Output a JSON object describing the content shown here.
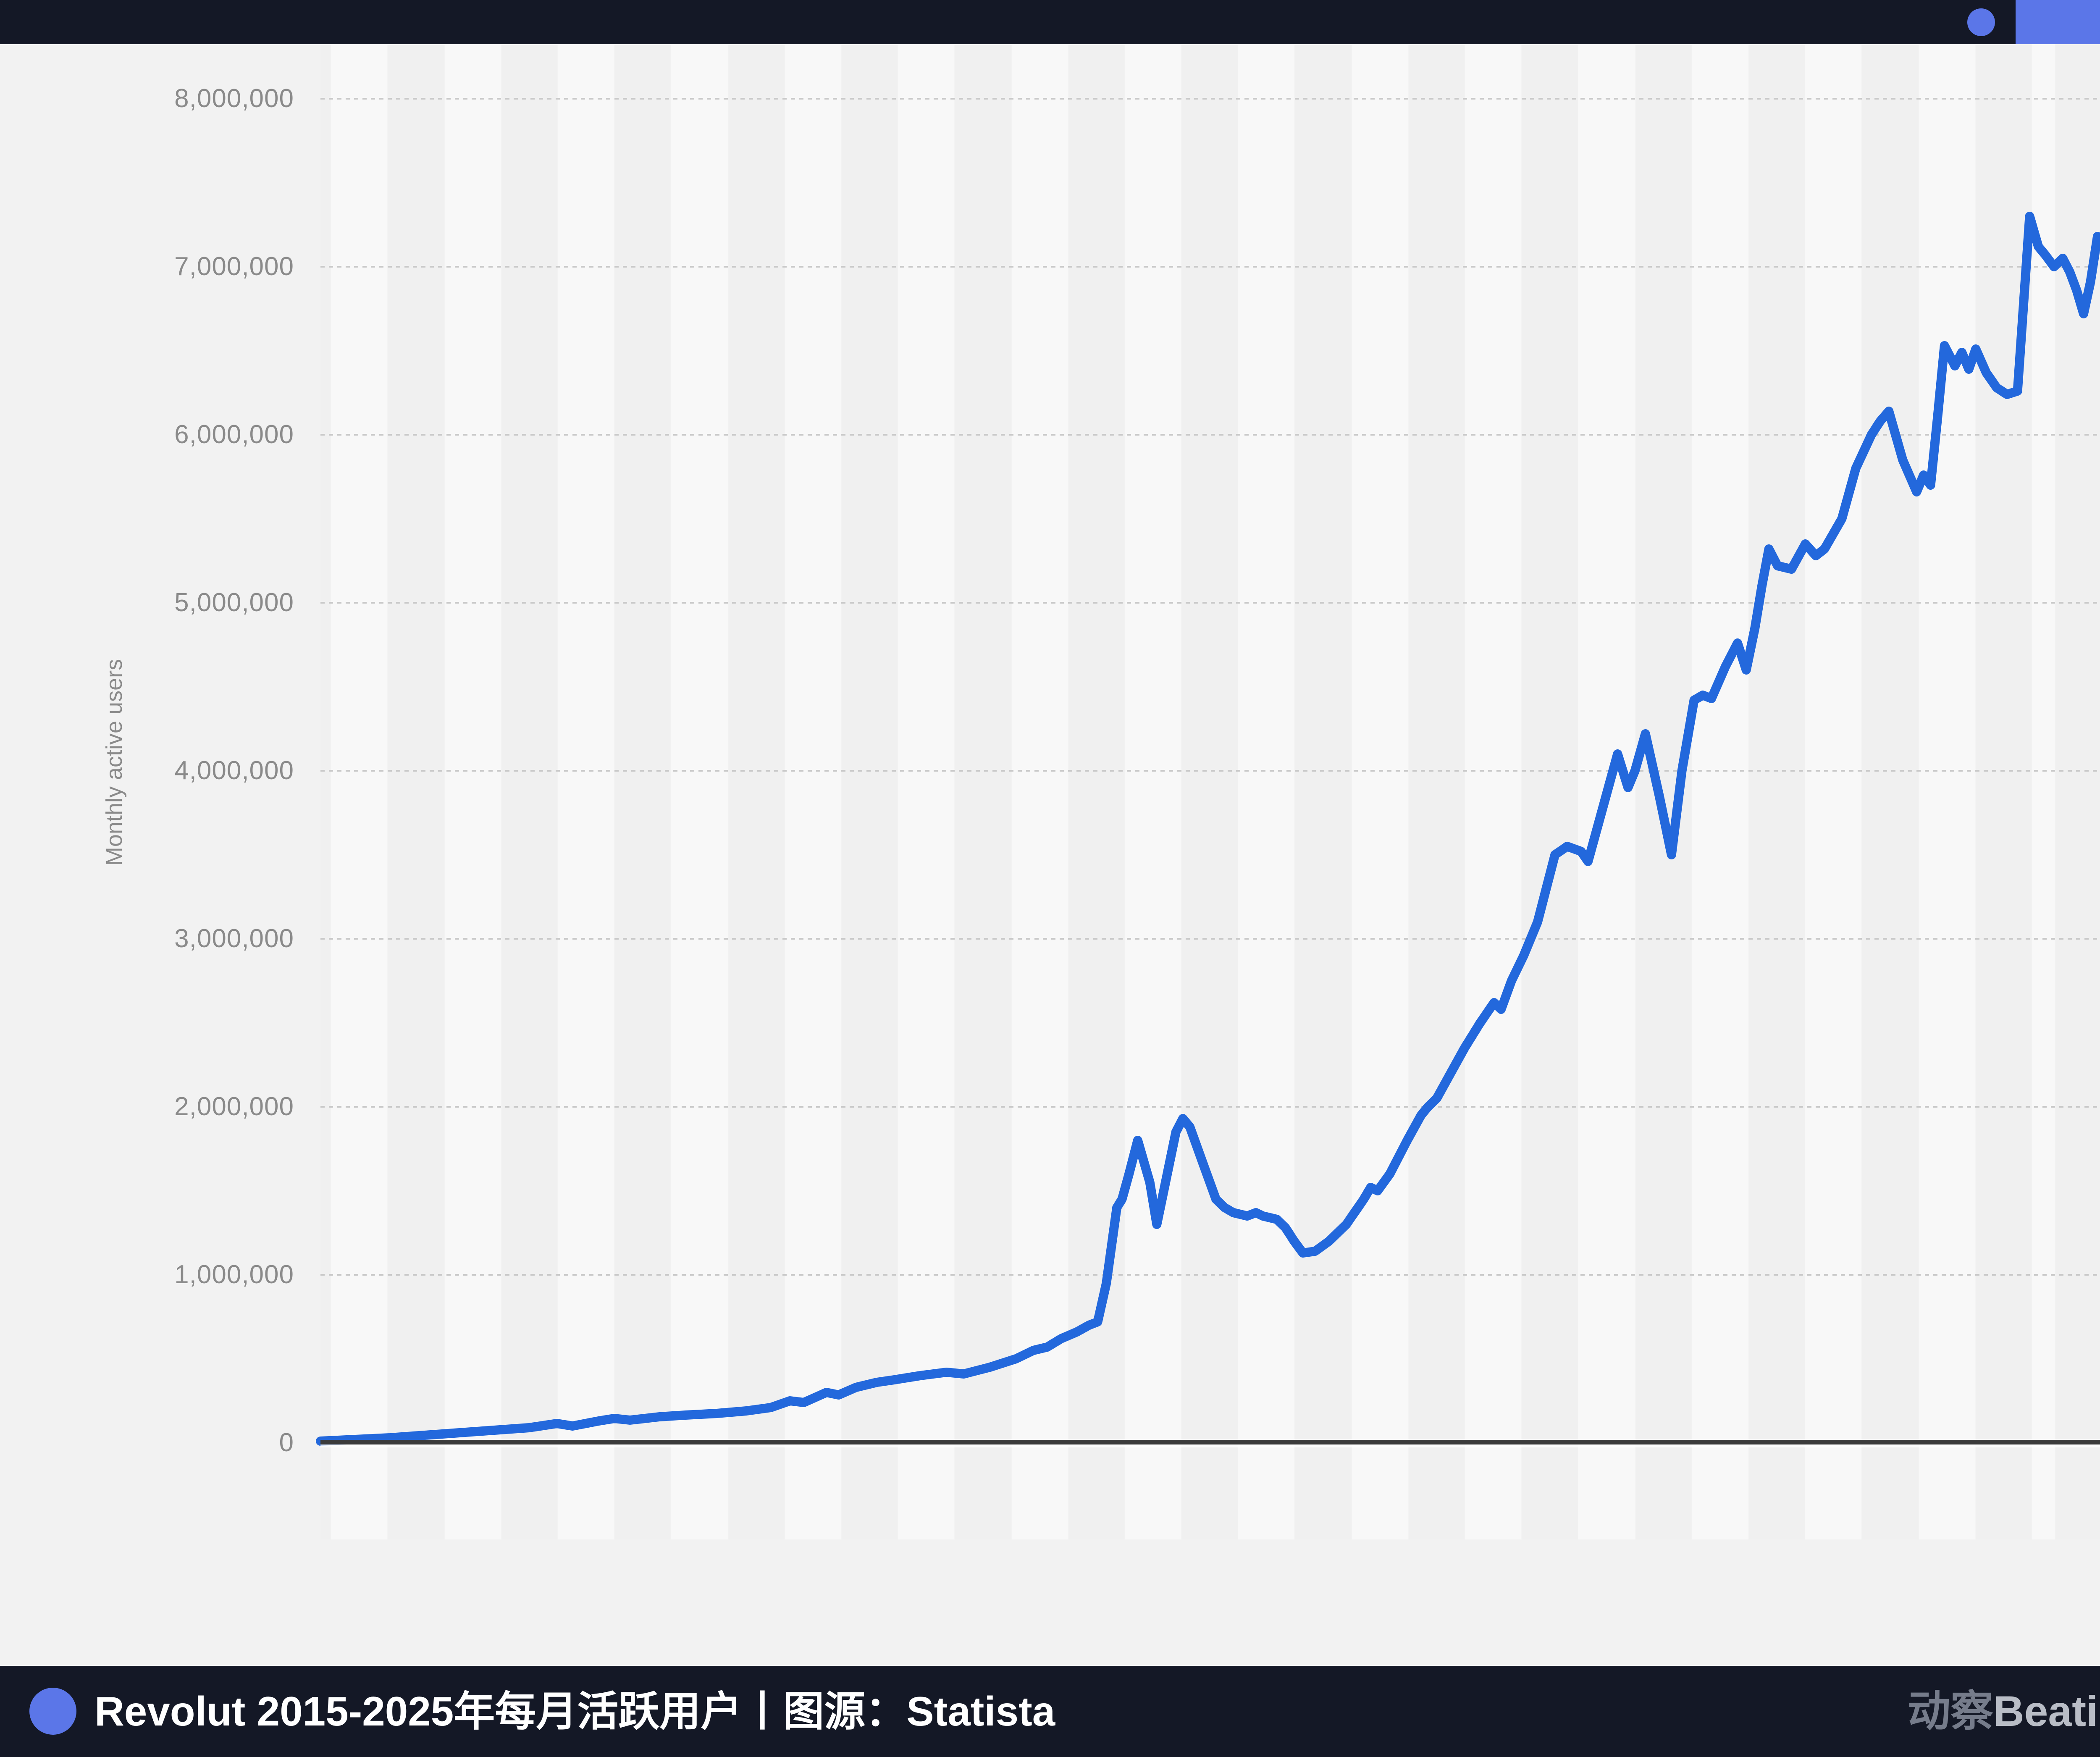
{
  "top_bar": {
    "background": "#141826",
    "accent_color": "#5b76e8"
  },
  "bottom_bar": {
    "background": "#141826",
    "bullet_color": "#5b76e8",
    "caption": "Revolut 2015-2025年每月活跃用户丨图源：Statista",
    "logo": {
      "cn": "动察",
      "en": "Beating"
    }
  },
  "chart_data": {
    "type": "line",
    "title": "Revolut 2015-2025年每月活跃用户",
    "source": "Statista",
    "ylabel": "Monthly active users",
    "xlabel": "",
    "ylim": [
      0,
      8000000
    ],
    "y_tick_labels": [
      "0",
      "1,000,000",
      "2,000,000",
      "3,000,000",
      "4,000,000",
      "5,000,000",
      "6,000,000",
      "7,000,000",
      "8,000,000"
    ],
    "x_range_years": [
      2015.5,
      2025.72
    ],
    "grid": "horizontal-dotted",
    "legend_position": "none",
    "line_color": "#2368dc",
    "plot_band_colors": [
      "#f0f0f0",
      "#f8f8f8"
    ],
    "series": [
      {
        "name": "Monthly active users",
        "points_year_users": [
          [
            2015.5,
            10000
          ],
          [
            2015.7,
            20000
          ],
          [
            2015.9,
            30000
          ],
          [
            2016.1,
            45000
          ],
          [
            2016.3,
            60000
          ],
          [
            2016.5,
            75000
          ],
          [
            2016.7,
            90000
          ],
          [
            2016.86,
            115000
          ],
          [
            2016.95,
            100000
          ],
          [
            2017.1,
            130000
          ],
          [
            2017.19,
            145000
          ],
          [
            2017.28,
            135000
          ],
          [
            2017.45,
            155000
          ],
          [
            2017.6,
            165000
          ],
          [
            2017.78,
            175000
          ],
          [
            2017.95,
            190000
          ],
          [
            2018.09,
            210000
          ],
          [
            2018.2,
            250000
          ],
          [
            2018.28,
            240000
          ],
          [
            2018.41,
            300000
          ],
          [
            2018.48,
            285000
          ],
          [
            2018.58,
            330000
          ],
          [
            2018.7,
            360000
          ],
          [
            2018.8,
            375000
          ],
          [
            2018.95,
            400000
          ],
          [
            2019.1,
            420000
          ],
          [
            2019.2,
            410000
          ],
          [
            2019.35,
            450000
          ],
          [
            2019.5,
            500000
          ],
          [
            2019.6,
            550000
          ],
          [
            2019.68,
            570000
          ],
          [
            2019.76,
            620000
          ],
          [
            2019.85,
            660000
          ],
          [
            2019.92,
            700000
          ],
          [
            2019.97,
            720000
          ],
          [
            2020.02,
            950000
          ],
          [
            2020.08,
            1400000
          ],
          [
            2020.11,
            1450000
          ],
          [
            2020.15,
            1600000
          ],
          [
            2020.2,
            1800000
          ],
          [
            2020.27,
            1550000
          ],
          [
            2020.31,
            1300000
          ],
          [
            2020.36,
            1550000
          ],
          [
            2020.42,
            1850000
          ],
          [
            2020.46,
            1930000
          ],
          [
            2020.5,
            1880000
          ],
          [
            2020.58,
            1650000
          ],
          [
            2020.65,
            1450000
          ],
          [
            2020.7,
            1400000
          ],
          [
            2020.75,
            1370000
          ],
          [
            2020.83,
            1350000
          ],
          [
            2020.88,
            1370000
          ],
          [
            2020.92,
            1350000
          ],
          [
            2021.0,
            1330000
          ],
          [
            2021.05,
            1280000
          ],
          [
            2021.1,
            1200000
          ],
          [
            2021.15,
            1130000
          ],
          [
            2021.22,
            1140000
          ],
          [
            2021.3,
            1200000
          ],
          [
            2021.4,
            1300000
          ],
          [
            2021.5,
            1450000
          ],
          [
            2021.54,
            1520000
          ],
          [
            2021.58,
            1500000
          ],
          [
            2021.65,
            1600000
          ],
          [
            2021.75,
            1800000
          ],
          [
            2021.83,
            1950000
          ],
          [
            2021.87,
            2000000
          ],
          [
            2021.92,
            2050000
          ],
          [
            2022.0,
            2200000
          ],
          [
            2022.08,
            2350000
          ],
          [
            2022.17,
            2500000
          ],
          [
            2022.25,
            2620000
          ],
          [
            2022.29,
            2580000
          ],
          [
            2022.35,
            2750000
          ],
          [
            2022.42,
            2900000
          ],
          [
            2022.5,
            3100000
          ],
          [
            2022.55,
            3300000
          ],
          [
            2022.6,
            3500000
          ],
          [
            2022.67,
            3550000
          ],
          [
            2022.75,
            3520000
          ],
          [
            2022.79,
            3460000
          ],
          [
            2022.96,
            4100000
          ],
          [
            2023.02,
            3900000
          ],
          [
            2023.06,
            4000000
          ],
          [
            2023.12,
            4220000
          ],
          [
            2023.2,
            3850000
          ],
          [
            2023.27,
            3500000
          ],
          [
            2023.33,
            4000000
          ],
          [
            2023.4,
            4420000
          ],
          [
            2023.45,
            4450000
          ],
          [
            2023.5,
            4430000
          ],
          [
            2023.58,
            4620000
          ],
          [
            2023.65,
            4760000
          ],
          [
            2023.7,
            4600000
          ],
          [
            2023.75,
            4850000
          ],
          [
            2023.79,
            5100000
          ],
          [
            2023.83,
            5320000
          ],
          [
            2023.88,
            5220000
          ],
          [
            2023.96,
            5200000
          ],
          [
            2024.04,
            5350000
          ],
          [
            2024.1,
            5280000
          ],
          [
            2024.15,
            5320000
          ],
          [
            2024.25,
            5500000
          ],
          [
            2024.33,
            5800000
          ],
          [
            2024.42,
            6000000
          ],
          [
            2024.47,
            6080000
          ],
          [
            2024.52,
            6140000
          ],
          [
            2024.6,
            5850000
          ],
          [
            2024.68,
            5660000
          ],
          [
            2024.72,
            5760000
          ],
          [
            2024.76,
            5700000
          ],
          [
            2024.8,
            6100000
          ],
          [
            2024.84,
            6530000
          ],
          [
            2024.9,
            6410000
          ],
          [
            2024.94,
            6490000
          ],
          [
            2024.98,
            6390000
          ],
          [
            2025.02,
            6510000
          ],
          [
            2025.08,
            6370000
          ],
          [
            2025.14,
            6280000
          ],
          [
            2025.2,
            6240000
          ],
          [
            2025.26,
            6260000
          ],
          [
            2025.33,
            7300000
          ],
          [
            2025.38,
            7120000
          ],
          [
            2025.42,
            7070000
          ],
          [
            2025.47,
            7000000
          ],
          [
            2025.52,
            7050000
          ],
          [
            2025.56,
            6970000
          ],
          [
            2025.6,
            6860000
          ],
          [
            2025.64,
            6720000
          ],
          [
            2025.68,
            6910000
          ],
          [
            2025.72,
            7180000
          ]
        ]
      }
    ]
  }
}
